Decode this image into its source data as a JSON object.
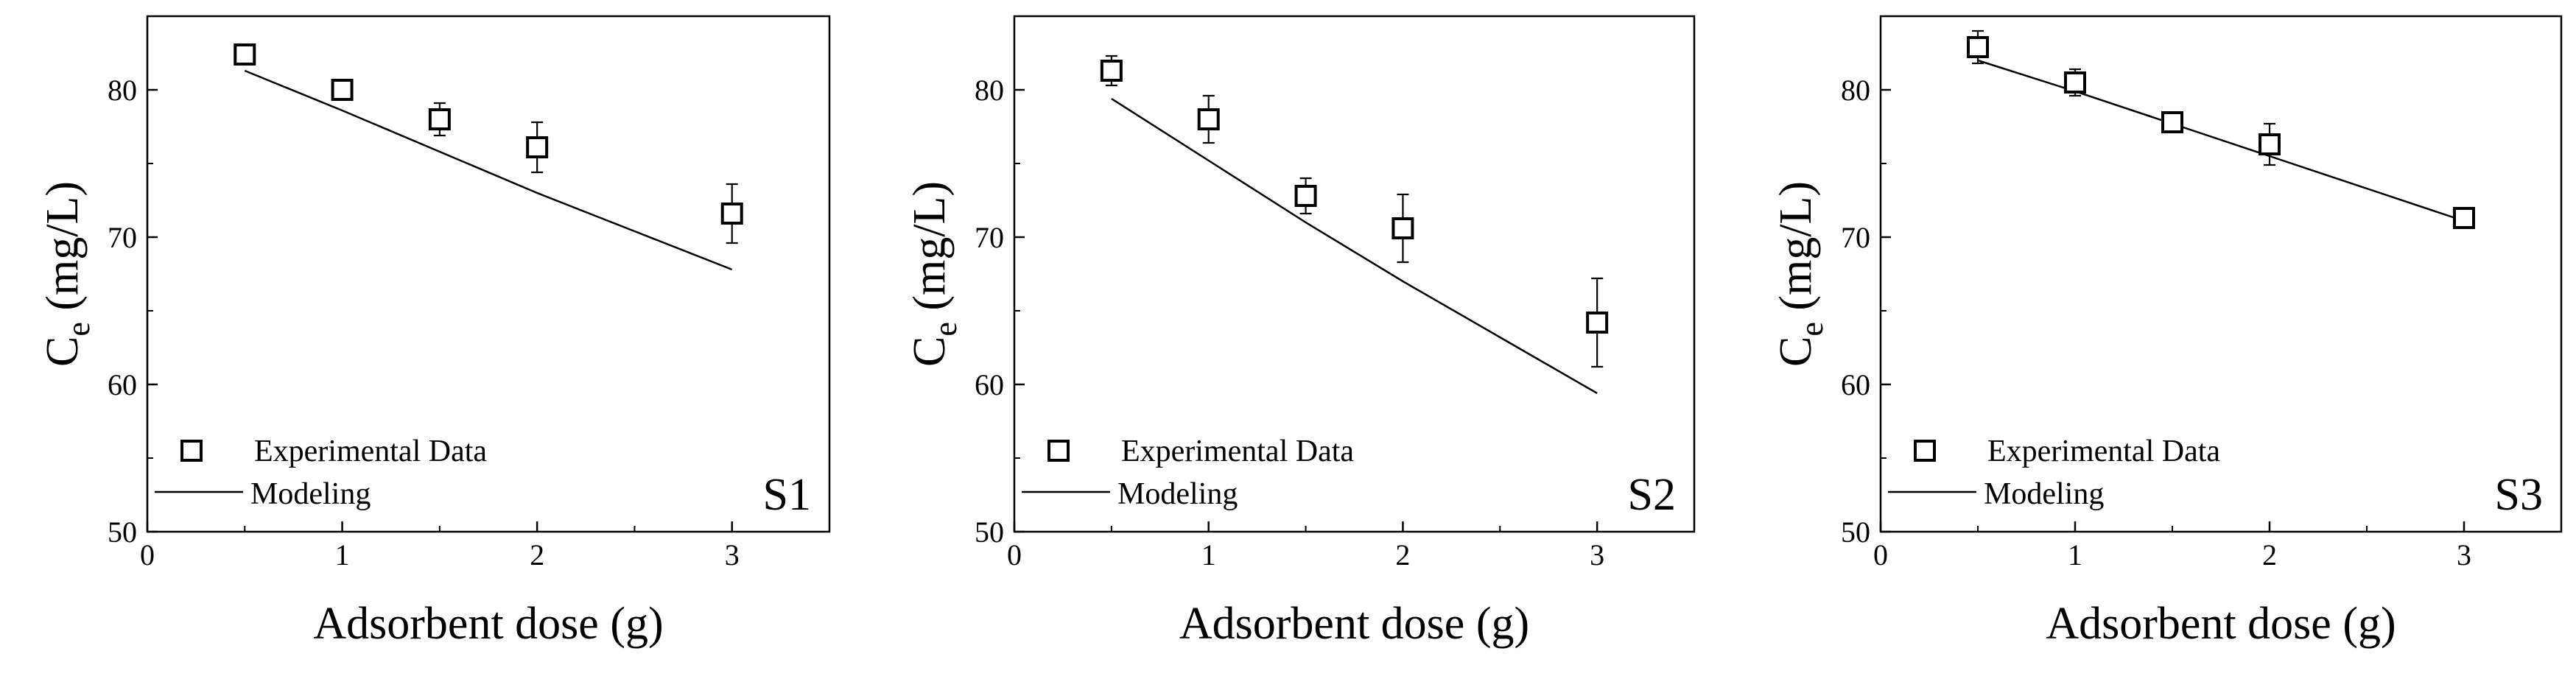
{
  "chart_data": [
    {
      "type": "scatter",
      "panel_label": "S1",
      "xlabel": "Adsorbent dose (g)",
      "ylabel_main": "C",
      "ylabel_sub": "e",
      "ylabel_unit": " (mg/L)",
      "xlim": [
        0,
        3.5
      ],
      "ylim": [
        50,
        85
      ],
      "xticks": [
        0,
        1,
        2,
        3
      ],
      "yticks": [
        50,
        60,
        70,
        80
      ],
      "legend": [
        "Experimental Data",
        "Modeling"
      ],
      "legend_position": "bottom-left",
      "series": [
        {
          "name": "Experimental Data",
          "x": [
            0.5,
            1.0,
            1.5,
            2.0,
            3.0
          ],
          "y": [
            82.4,
            80.0,
            78.0,
            76.1,
            71.6
          ],
          "err": [
            0.4,
            0.6,
            1.1,
            1.7,
            2.0
          ]
        },
        {
          "name": "Modeling",
          "x": [
            0.5,
            1.0,
            1.5,
            2.0,
            2.5,
            3.0
          ],
          "y": [
            81.3,
            78.6,
            75.8,
            73.0,
            70.4,
            67.8
          ]
        }
      ]
    },
    {
      "type": "scatter",
      "panel_label": "S2",
      "xlabel": "Adsorbent dose (g)",
      "ylabel_main": "C",
      "ylabel_sub": "e",
      "ylabel_unit": " (mg/L)",
      "xlim": [
        0,
        3.5
      ],
      "ylim": [
        50,
        85
      ],
      "xticks": [
        0,
        1,
        2,
        3
      ],
      "yticks": [
        50,
        60,
        70,
        80
      ],
      "legend": [
        "Experimental Data",
        "Modeling"
      ],
      "legend_position": "bottom-left",
      "series": [
        {
          "name": "Experimental Data",
          "x": [
            0.5,
            1.0,
            1.5,
            2.0,
            3.0
          ],
          "y": [
            81.3,
            78.0,
            72.8,
            70.6,
            64.2
          ],
          "err": [
            1.0,
            1.6,
            1.2,
            2.3,
            3.0
          ]
        },
        {
          "name": "Modeling",
          "x": [
            0.5,
            1.0,
            1.5,
            2.0,
            2.5,
            3.0
          ],
          "y": [
            79.4,
            75.2,
            71.0,
            67.0,
            63.2,
            59.4
          ]
        }
      ]
    },
    {
      "type": "scatter",
      "panel_label": "S3",
      "xlabel": "Adsorbent dose (g)",
      "ylabel_main": "C",
      "ylabel_sub": "e",
      "ylabel_unit": " (mg/L)",
      "xlim": [
        0,
        3.5
      ],
      "ylim": [
        50,
        85
      ],
      "xticks": [
        0,
        1,
        2,
        3
      ],
      "yticks": [
        50,
        60,
        70,
        80
      ],
      "legend": [
        "Experimental Data",
        "Modeling"
      ],
      "legend_position": "bottom-left",
      "series": [
        {
          "name": "Experimental Data",
          "x": [
            0.5,
            1.0,
            1.5,
            2.0,
            3.0
          ],
          "y": [
            82.9,
            80.5,
            77.8,
            76.3,
            71.3
          ],
          "err": [
            1.1,
            0.9,
            0.3,
            1.4,
            0.4
          ]
        },
        {
          "name": "Modeling",
          "x": [
            0.5,
            1.0,
            1.5,
            2.0,
            2.5,
            3.0
          ],
          "y": [
            82.0,
            79.9,
            77.7,
            75.5,
            73.3,
            71.1
          ]
        }
      ]
    }
  ]
}
